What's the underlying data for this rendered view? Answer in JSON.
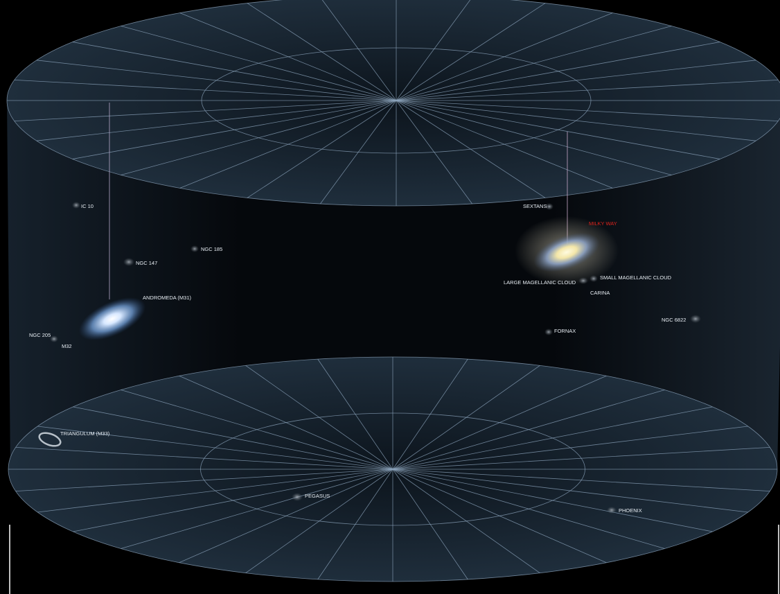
{
  "labels": [
    "IC 10",
    "NGC 147",
    "NGC 185",
    "ANDROMEDA (M31)",
    "NGC 205",
    "M32",
    "TRIANGULUM (M33)",
    "SEXTANS",
    "MILKY WAY",
    "LARGE MAGELLANIC CLOUD",
    "SMALL MAGELLANIC CLOUD",
    "CARINA",
    "NGC 6822",
    "FORNAX",
    "PEGASUS",
    "PHOENIX"
  ]
}
